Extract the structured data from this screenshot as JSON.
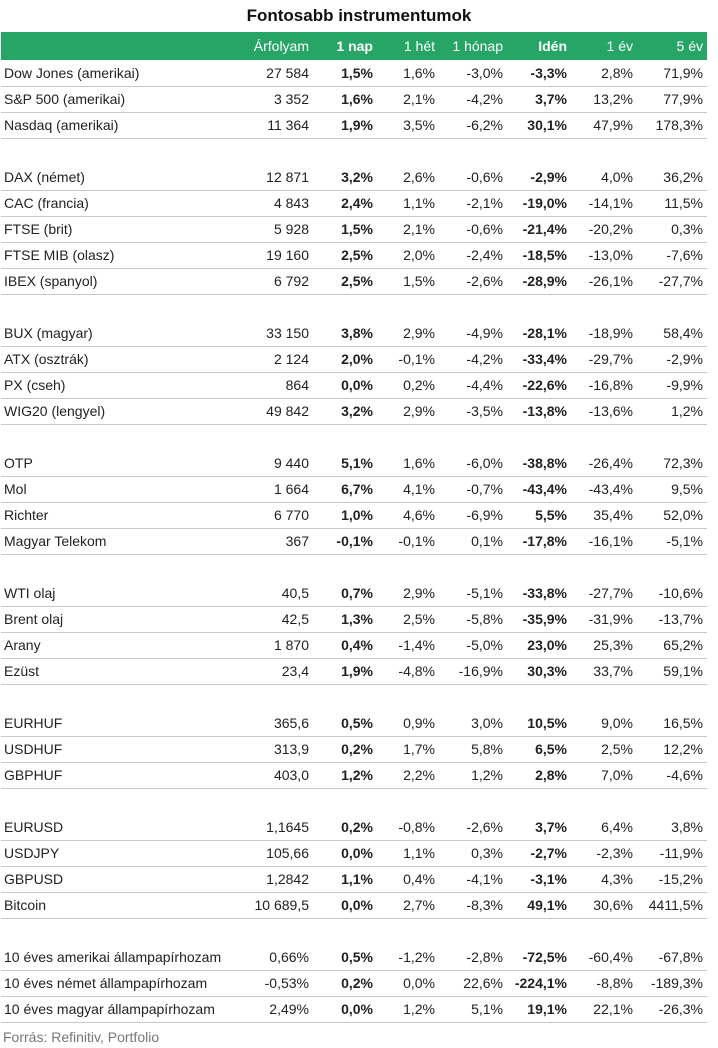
{
  "title": "Fontosabb instrumentumok",
  "header": [
    "",
    "Árfolyam",
    "1 nap",
    "1 hét",
    "1 hónap",
    "Idén",
    "1 év",
    "5 év"
  ],
  "groups": [
    [
      [
        "Dow Jones (amerikai)",
        "27 584",
        "1,5%",
        "1,6%",
        "-3,0%",
        "-3,3%",
        "2,8%",
        "71,9%"
      ],
      [
        "S&P 500 (amerikai)",
        "3 352",
        "1,6%",
        "2,1%",
        "-4,2%",
        "3,7%",
        "13,2%",
        "77,9%"
      ],
      [
        "Nasdaq (amerikai)",
        "11 364",
        "1,9%",
        "3,5%",
        "-6,2%",
        "30,1%",
        "47,9%",
        "178,3%"
      ]
    ],
    [
      [
        "DAX (német)",
        "12 871",
        "3,2%",
        "2,6%",
        "-0,6%",
        "-2,9%",
        "4,0%",
        "36,2%"
      ],
      [
        "CAC (francia)",
        "4 843",
        "2,4%",
        "1,1%",
        "-2,1%",
        "-19,0%",
        "-14,1%",
        "11,5%"
      ],
      [
        "FTSE (brit)",
        "5 928",
        "1,5%",
        "2,1%",
        "-0,6%",
        "-21,4%",
        "-20,2%",
        "0,3%"
      ],
      [
        "FTSE MIB (olasz)",
        "19 160",
        "2,5%",
        "2,0%",
        "-2,4%",
        "-18,5%",
        "-13,0%",
        "-7,6%"
      ],
      [
        "IBEX (spanyol)",
        "6 792",
        "2,5%",
        "1,5%",
        "-2,6%",
        "-28,9%",
        "-26,1%",
        "-27,7%"
      ]
    ],
    [
      [
        "BUX (magyar)",
        "33 150",
        "3,8%",
        "2,9%",
        "-4,9%",
        "-28,1%",
        "-18,9%",
        "58,4%"
      ],
      [
        "ATX (osztrák)",
        "2 124",
        "2,0%",
        "-0,1%",
        "-4,2%",
        "-33,4%",
        "-29,7%",
        "-2,9%"
      ],
      [
        "PX (cseh)",
        "864",
        "0,0%",
        "0,2%",
        "-4,4%",
        "-22,6%",
        "-16,8%",
        "-9,9%"
      ],
      [
        "WIG20 (lengyel)",
        "49 842",
        "3,2%",
        "2,9%",
        "-3,5%",
        "-13,8%",
        "-13,6%",
        "1,2%"
      ]
    ],
    [
      [
        "OTP",
        "9 440",
        "5,1%",
        "1,6%",
        "-6,0%",
        "-38,8%",
        "-26,4%",
        "72,3%"
      ],
      [
        "Mol",
        "1 664",
        "6,7%",
        "4,1%",
        "-0,7%",
        "-43,4%",
        "-43,4%",
        "9,5%"
      ],
      [
        "Richter",
        "6 770",
        "1,0%",
        "4,6%",
        "-6,9%",
        "5,5%",
        "35,4%",
        "52,0%"
      ],
      [
        "Magyar Telekom",
        "367",
        "-0,1%",
        "-0,1%",
        "0,1%",
        "-17,8%",
        "-16,1%",
        "-5,1%"
      ]
    ],
    [
      [
        "WTI olaj",
        "40,5",
        "0,7%",
        "2,9%",
        "-5,1%",
        "-33,8%",
        "-27,7%",
        "-10,6%"
      ],
      [
        "Brent olaj",
        "42,5",
        "1,3%",
        "2,5%",
        "-5,8%",
        "-35,9%",
        "-31,9%",
        "-13,7%"
      ],
      [
        "Arany",
        "1 870",
        "0,4%",
        "-1,4%",
        "-5,0%",
        "23,0%",
        "25,3%",
        "65,2%"
      ],
      [
        "Ezüst",
        "23,4",
        "1,9%",
        "-4,8%",
        "-16,9%",
        "30,3%",
        "33,7%",
        "59,1%"
      ]
    ],
    [
      [
        "EURHUF",
        "365,6",
        "0,5%",
        "0,9%",
        "3,0%",
        "10,5%",
        "9,0%",
        "16,5%"
      ],
      [
        "USDHUF",
        "313,9",
        "0,2%",
        "1,7%",
        "5,8%",
        "6,5%",
        "2,5%",
        "12,2%"
      ],
      [
        "GBPHUF",
        "403,0",
        "1,2%",
        "2,2%",
        "1,2%",
        "2,8%",
        "7,0%",
        "-4,6%"
      ]
    ],
    [
      [
        "EURUSD",
        "1,1645",
        "0,2%",
        "-0,8%",
        "-2,6%",
        "3,7%",
        "6,4%",
        "3,8%"
      ],
      [
        "USDJPY",
        "105,66",
        "0,0%",
        "1,1%",
        "0,3%",
        "-2,7%",
        "-2,3%",
        "-11,9%"
      ],
      [
        "GBPUSD",
        "1,2842",
        "1,1%",
        "0,4%",
        "-4,1%",
        "-3,1%",
        "4,3%",
        "-15,2%"
      ],
      [
        "Bitcoin",
        "10 689,5",
        "0,0%",
        "2,7%",
        "-8,3%",
        "49,1%",
        "30,6%",
        "4411,5%"
      ]
    ],
    [
      [
        "10 éves amerikai állampapírhozam",
        "0,66%",
        "0,5%",
        "-1,2%",
        "-2,8%",
        "-72,5%",
        "-60,4%",
        "-67,8%"
      ],
      [
        "10 éves német állampapírhozam",
        "-0,53%",
        "0,2%",
        "0,0%",
        "22,6%",
        "-224,1%",
        "-8,8%",
        "-189,3%"
      ],
      [
        "10 éves magyar állampapírhozam",
        "2,49%",
        "0,0%",
        "1,2%",
        "5,1%",
        "19,1%",
        "22,1%",
        "-26,3%"
      ]
    ]
  ],
  "source": "Forrás: Refinitiv, Portfolio"
}
